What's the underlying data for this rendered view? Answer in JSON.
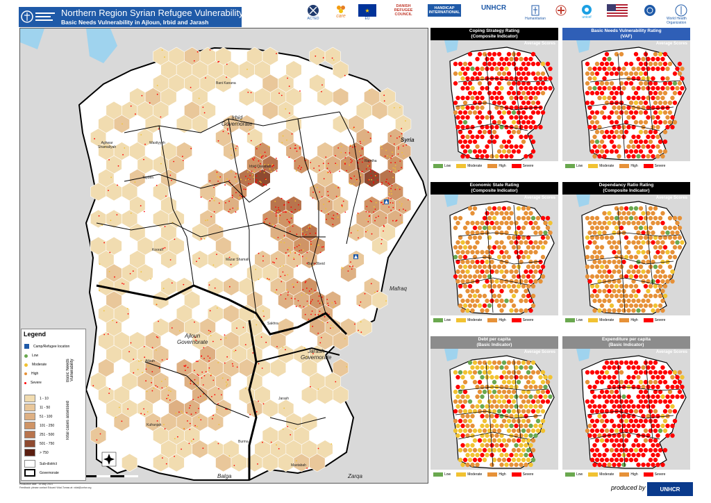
{
  "header": {
    "title": "Northern Region Syrian Refugee Vulnerability",
    "subtitle": "Basic Needs Vulnerability in Ajloun, Irbid and Jarash"
  },
  "partners": [
    "ACTED",
    "care",
    "EU",
    "DANISH REFUGEE COUNCIL",
    "HANDICAP INTERNATIONAL",
    "UNHCR",
    "Humanitarian",
    "",
    "unicef",
    "",
    "",
    "World Health Organization"
  ],
  "map": {
    "labels": {
      "bani_kanana": "Bani Kanana",
      "irbid_gov": "Irbid\nGovernorate",
      "aghwar": "Aghwar\nShamaliyah",
      "wastiyyeh": "Wastiyyeh",
      "irbid_center": "Irbid Qasabah",
      "ramtha": "Ramtha",
      "syria": "Syria",
      "taybeh": "Taybeh",
      "koorah": "Koorah",
      "mazar": "Mazar Shamali",
      "bani_obeid": "Bani Obeid",
      "mafraq": "Mafraq",
      "ajloun_gov": "Ajloun\nGovernorate",
      "ajloun": "Ajloun",
      "jarash_gov": "Jarash\nGovernorate",
      "jarash": "Jarash",
      "kufranjah": "Kufranjah",
      "sakhra": "Sakhra",
      "balga": "Balga",
      "zarqa": "Zarqa",
      "burma": "Burma",
      "nasbiah": "Mastabah"
    }
  },
  "legend": {
    "title": "Legend",
    "camp_label": "Camp/Refugee location",
    "bnv_title": "Basic Needs Vulnerability",
    "levels": [
      "Low",
      "Moderate",
      "High",
      "Severe"
    ],
    "cases_title": "Total cases assessed",
    "ranges": [
      "1 - 10",
      "11 - 50",
      "51 - 100",
      "101 - 250",
      "251 - 500",
      "501 - 750",
      "> 750"
    ],
    "subdistrict": "Sub-district",
    "governorate": "Governorate"
  },
  "panels": [
    {
      "title": "Coping Strategy Rating\n(Composite Indicator)",
      "avg": "Average Scores",
      "header_color": "#000000"
    },
    {
      "title": "Basic Needs Vulnerability Rating\n(VAF)",
      "avg": "Average Scores",
      "header_color": "#2f5fb7"
    },
    {
      "title": "Economic State Rating\n(Composite Indicator)",
      "avg": "Average Scores",
      "header_color": "#000000"
    },
    {
      "title": "Dependancy Ratio Rating\n(Composite Indicator)",
      "avg": "Average Scores",
      "header_color": "#000000"
    },
    {
      "title": "Debt per capita\n(Basic Indicator)",
      "avg": "Average Scores",
      "header_color": "#8c8c8c"
    },
    {
      "title": "Expenditure per capita\n(Basic Indicator)",
      "avg": "Average Scores",
      "header_color": "#8c8c8c"
    }
  ],
  "panel_legend": [
    "Low",
    "Moderate",
    "High",
    "Severe"
  ],
  "colors": {
    "low": "#6aa84f",
    "moderate": "#f1c232",
    "high": "#e69138",
    "severe": "#ff0000",
    "header_blue": "#1f5aa8",
    "water": "#9fd3ee",
    "cases": [
      "#f1dcb0",
      "#e9c79a",
      "#deb083",
      "#cf9466",
      "#b8744d",
      "#8e4a30",
      "#5a1e10"
    ]
  },
  "footer": {
    "line1": "Production date : 15 May 2014",
    "line2": "Feedback: please contact Eduard Vidal-Tomas at: vidal@unhcr.org",
    "produced_by": "produced by",
    "unhcr": "UNHCR"
  }
}
